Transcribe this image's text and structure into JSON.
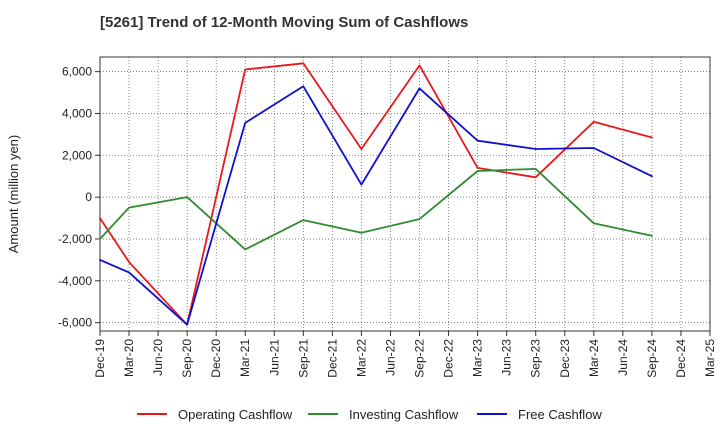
{
  "title": "[5261]  Trend of 12-Month Moving Sum of Cashflows",
  "colors": {
    "operating": "#e8191c",
    "investing": "#2e8b2e",
    "free": "#1010cc"
  },
  "chart_data": {
    "type": "line",
    "title": "[5261]  Trend of 12-Month Moving Sum of Cashflows",
    "xlabel": "",
    "ylabel": "Amount (million yen)",
    "categories": [
      "Dec-19",
      "Mar-20",
      "Jun-20",
      "Sep-20",
      "Dec-20",
      "Mar-21",
      "Jun-21",
      "Sep-21",
      "Dec-21",
      "Mar-22",
      "Jun-22",
      "Sep-22",
      "Dec-22",
      "Mar-23",
      "Jun-23",
      "Sep-23",
      "Dec-23",
      "Mar-24",
      "Jun-24",
      "Sep-24",
      "Dec-24",
      "Mar-25"
    ],
    "yticks": [
      -6000,
      -4000,
      -2000,
      0,
      2000,
      4000,
      6000
    ],
    "ytick_labels": [
      "-6,000",
      "-4,000",
      "-2,000",
      "0",
      "2,000",
      "4,000",
      "6,000"
    ],
    "ylim": [
      -6400,
      6700
    ],
    "grid": true,
    "legend_position": "bottom",
    "series": [
      {
        "name": "Operating Cashflow",
        "color": "#e8191c",
        "points": [
          {
            "x": "Dec-19",
            "y": -1000
          },
          {
            "x": "Mar-20",
            "y": -3100
          },
          {
            "x": "Sep-20",
            "y": -6100
          },
          {
            "x": "Mar-21",
            "y": 6100
          },
          {
            "x": "Sep-21",
            "y": 6400
          },
          {
            "x": "Mar-22",
            "y": 2300
          },
          {
            "x": "Sep-22",
            "y": 6300
          },
          {
            "x": "Mar-23",
            "y": 1400
          },
          {
            "x": "Sep-23",
            "y": 950
          },
          {
            "x": "Mar-24",
            "y": 3600
          },
          {
            "x": "Sep-24",
            "y": 2850
          }
        ]
      },
      {
        "name": "Investing Cashflow",
        "color": "#2e8b2e",
        "points": [
          {
            "x": "Dec-19",
            "y": -2000
          },
          {
            "x": "Mar-20",
            "y": -500
          },
          {
            "x": "Sep-20",
            "y": 0
          },
          {
            "x": "Mar-21",
            "y": -2500
          },
          {
            "x": "Sep-21",
            "y": -1100
          },
          {
            "x": "Mar-22",
            "y": -1700
          },
          {
            "x": "Sep-22",
            "y": -1050
          },
          {
            "x": "Mar-23",
            "y": 1250
          },
          {
            "x": "Sep-23",
            "y": 1350
          },
          {
            "x": "Mar-24",
            "y": -1250
          },
          {
            "x": "Sep-24",
            "y": -1850
          }
        ]
      },
      {
        "name": "Free Cashflow",
        "color": "#1010cc",
        "points": [
          {
            "x": "Dec-19",
            "y": -3000
          },
          {
            "x": "Mar-20",
            "y": -3600
          },
          {
            "x": "Sep-20",
            "y": -6100
          },
          {
            "x": "Mar-21",
            "y": 3550
          },
          {
            "x": "Sep-21",
            "y": 5300
          },
          {
            "x": "Mar-22",
            "y": 600
          },
          {
            "x": "Sep-22",
            "y": 5200
          },
          {
            "x": "Mar-23",
            "y": 2700
          },
          {
            "x": "Sep-23",
            "y": 2300
          },
          {
            "x": "Mar-24",
            "y": 2350
          },
          {
            "x": "Sep-24",
            "y": 1000
          }
        ]
      }
    ]
  }
}
